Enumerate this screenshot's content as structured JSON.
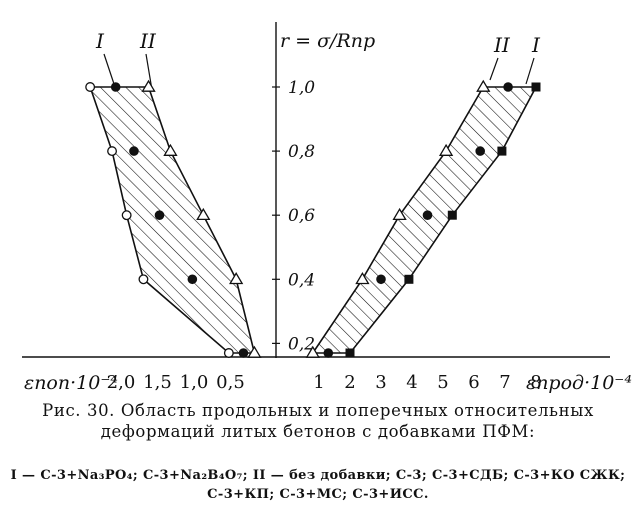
{
  "chart_data": {
    "type": "scatter",
    "y_axis_title": "r = σ/Rпр",
    "y_ticks": [
      "1,0",
      "0,8",
      "0,6",
      "0,4",
      "0,2"
    ],
    "x_left_label": "εпоп·10⁻⁴",
    "x_left_ticks": [
      "2,0",
      "1,5",
      "1,0",
      "0,5"
    ],
    "x_right_label": "εпрод·10⁻⁴",
    "x_right_ticks": [
      "1",
      "2",
      "3",
      "4",
      "5",
      "6",
      "7",
      "8"
    ],
    "band_labels_left": [
      "I",
      "II"
    ],
    "band_labels_right": [
      "II",
      "I"
    ],
    "series": [
      {
        "side": "transverse",
        "marker": "open-circle",
        "x": [
          2.45,
          2.15,
          1.95,
          1.72,
          0.55
        ],
        "y": [
          1.0,
          0.8,
          0.6,
          0.4,
          0.17
        ]
      },
      {
        "side": "transverse",
        "marker": "filled-circle",
        "x": [
          2.1,
          1.85,
          1.5,
          1.05,
          0.35
        ],
        "y": [
          1.0,
          0.8,
          0.6,
          0.4,
          0.17
        ]
      },
      {
        "side": "transverse",
        "marker": "open-triangle",
        "x": [
          1.65,
          1.35,
          0.9,
          0.45,
          0.2
        ],
        "y": [
          1.0,
          0.8,
          0.6,
          0.4,
          0.17
        ]
      },
      {
        "side": "longitudinal",
        "marker": "open-triangle",
        "x": [
          6.3,
          5.1,
          3.6,
          2.4,
          0.8
        ],
        "y": [
          1.0,
          0.8,
          0.6,
          0.4,
          0.17
        ]
      },
      {
        "side": "longitudinal",
        "marker": "filled-circle",
        "x": [
          7.1,
          6.2,
          4.5,
          3.0,
          1.3
        ],
        "y": [
          1.0,
          0.8,
          0.6,
          0.4,
          0.17
        ]
      },
      {
        "side": "longitudinal",
        "marker": "filled-square",
        "x": [
          8.0,
          6.9,
          5.3,
          3.9,
          2.0
        ],
        "y": [
          1.0,
          0.8,
          0.6,
          0.4,
          0.17
        ]
      }
    ]
  },
  "caption": {
    "prefix": "Рис. 30.",
    "text": "Область продольных и поперечных относительных деформаций литых бетонов с добавками ПФМ:"
  },
  "legend_text": "I — С-3+Na₃PO₄; С-3+Na₂B₄O₇; II — без добавки; С-3; С-3+СДБ; С-3+КО СЖК; С-3+КП; С-3+МС; С-3+ИСС."
}
